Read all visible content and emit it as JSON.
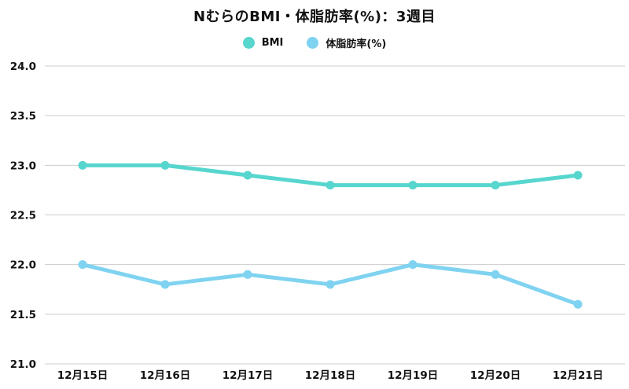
{
  "chart_data": {
    "type": "line",
    "title": "NむらのBMI・体脂肪率(%)：3週目",
    "categories": [
      "12月15日",
      "12月16日",
      "12月17日",
      "12月18日",
      "12月19日",
      "12月20日",
      "12月21日"
    ],
    "series": [
      {
        "name": "BMI",
        "color": "#57d6ce",
        "values": [
          23.0,
          23.0,
          22.9,
          22.8,
          22.8,
          22.8,
          22.9
        ]
      },
      {
        "name": "体脂肪率(%)",
        "color": "#7fd3f0",
        "values": [
          22.0,
          21.8,
          21.9,
          21.8,
          22.0,
          21.9,
          21.6
        ]
      }
    ],
    "ylim": [
      21.0,
      24.0
    ],
    "yticks": [
      21.0,
      21.5,
      22.0,
      22.5,
      23.0,
      23.5,
      24.0
    ],
    "grid": "horizontal",
    "gridline_color": "#cccccc",
    "tick_color": "#111111",
    "legend_position": "top-center",
    "background_color": "#ffffff"
  }
}
